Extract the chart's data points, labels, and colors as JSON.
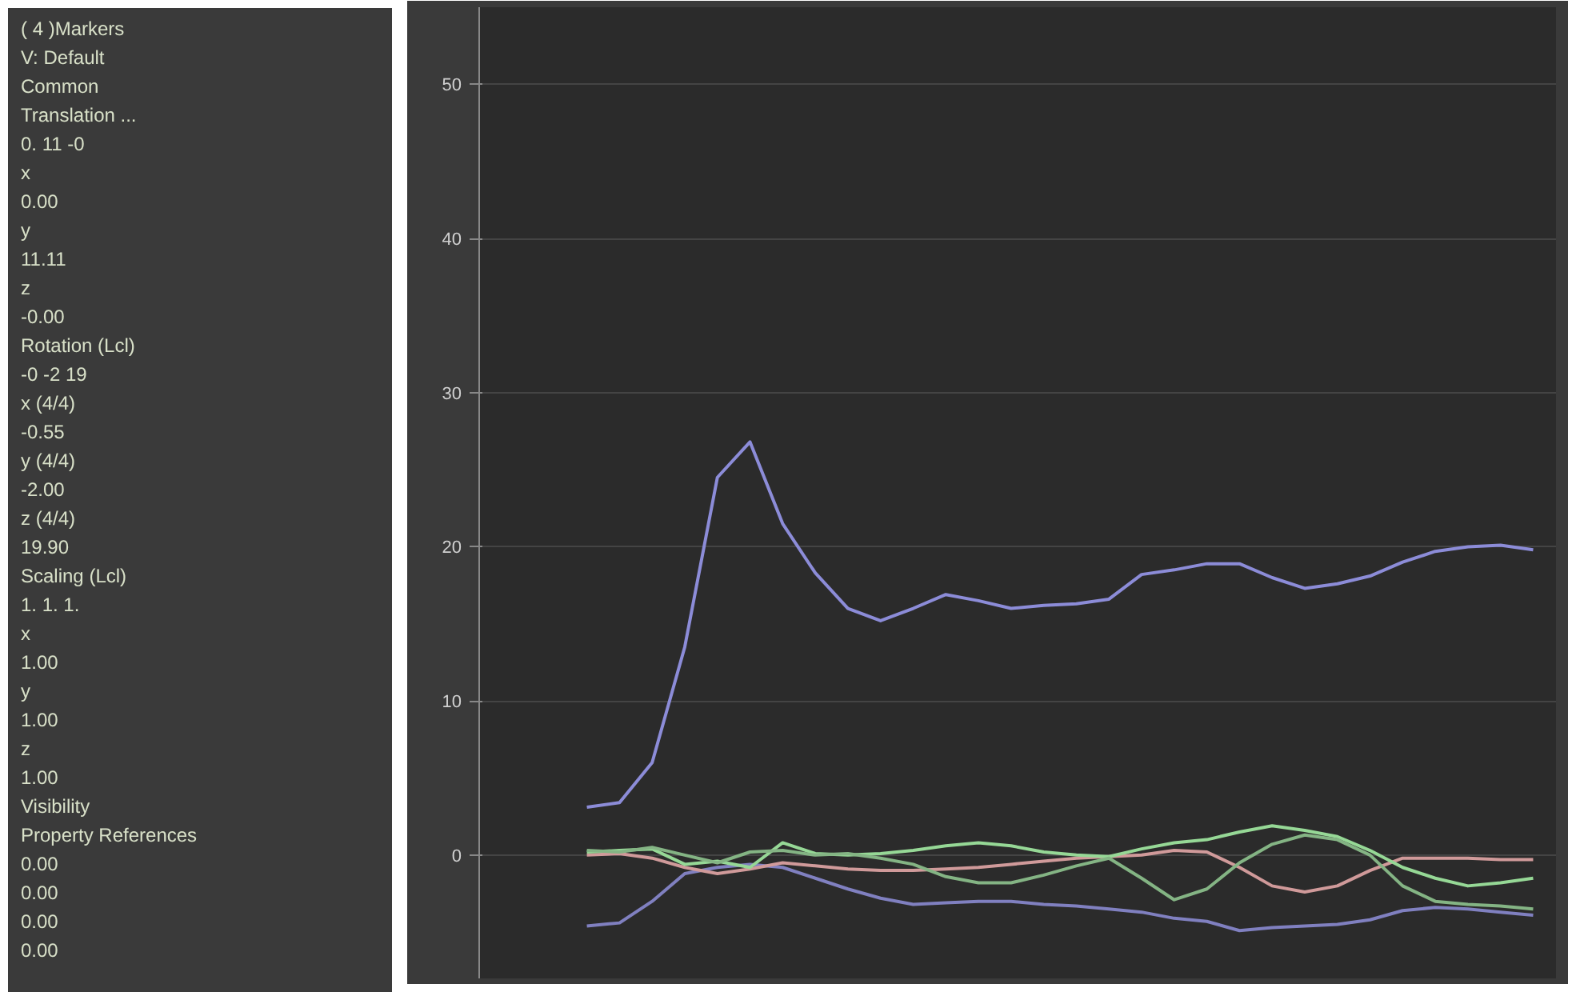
{
  "chart_data": {
    "type": "line",
    "annotations": [
      "( 4 )Markers",
      "V: Default",
      "Common",
      "Translation ...",
      "0. 11 -0",
      "x",
      "0.00",
      "y",
      "11.11",
      "z",
      "-0.00",
      "Rotation (Lcl)",
      "-0 -2 19",
      "x (4/4)",
      "-0.55",
      "y (4/4)",
      "-2.00",
      "z (4/4)",
      "19.90",
      "Scaling (Lcl)",
      "1. 1. 1.",
      "x",
      "1.00",
      "y",
      "1.00",
      "z",
      "1.00",
      "Visibility",
      "Property References",
      "0.00",
      "0.00",
      "0.00",
      "0.00"
    ],
    "categories": [
      null,
      null,
      null,
      null,
      null,
      null,
      null,
      null,
      null,
      null,
      null,
      null,
      null,
      null,
      null,
      null,
      null,
      null,
      null,
      null,
      null,
      null,
      null,
      null,
      null,
      null,
      null,
      null,
      null,
      null
    ],
    "ylim": [
      -8,
      55
    ],
    "yticks": [
      0,
      10,
      20,
      30,
      40,
      50
    ],
    "grid": "y",
    "series": [
      {
        "color": "#8c8cd8",
        "values": [
          3.1,
          3.4,
          6.0,
          13.5,
          24.5,
          26.8,
          21.5,
          18.3,
          16.0,
          15.2,
          16.0,
          16.9,
          16.5,
          16.0,
          16.2,
          16.3,
          16.6,
          18.2,
          18.5,
          18.9,
          18.9,
          18.0,
          17.3,
          17.6,
          18.1,
          19.0,
          19.7,
          20.0,
          20.1,
          19.8
        ]
      },
      {
        "color": "#8080c0",
        "values": [
          -4.6,
          -4.4,
          -3.0,
          -1.2,
          -0.8,
          -0.6,
          -0.8,
          -1.5,
          -2.2,
          -2.8,
          -3.2,
          -3.1,
          -3.0,
          -3.0,
          -3.2,
          -3.3,
          -3.5,
          -3.7,
          -4.1,
          -4.3,
          -4.9,
          -4.7,
          -4.6,
          -4.5,
          -4.2,
          -3.6,
          -3.4,
          -3.5,
          -3.7,
          -3.9
        ]
      },
      {
        "color": "#d09a9a",
        "values": [
          0.0,
          0.1,
          -0.2,
          -0.8,
          -1.2,
          -0.9,
          -0.5,
          -0.7,
          -0.9,
          -1.0,
          -1.0,
          -0.9,
          -0.8,
          -0.6,
          -0.4,
          -0.2,
          -0.1,
          0.0,
          0.3,
          0.2,
          -0.8,
          -2.0,
          -2.4,
          -2.0,
          -1.0,
          -0.2,
          -0.2,
          -0.2,
          -0.3,
          -0.3
        ]
      },
      {
        "color": "#96d896",
        "values": [
          0.2,
          0.3,
          0.4,
          -0.6,
          -0.4,
          -0.8,
          0.8,
          0.1,
          0.0,
          0.1,
          0.3,
          0.6,
          0.8,
          0.6,
          0.2,
          0.0,
          -0.1,
          0.4,
          0.8,
          1.0,
          1.5,
          1.9,
          1.6,
          1.2,
          0.3,
          -0.8,
          -1.5,
          -2.0,
          -1.8,
          -1.5
        ]
      },
      {
        "color": "#84b484",
        "values": [
          0.3,
          0.2,
          0.5,
          0.0,
          -0.5,
          0.2,
          0.3,
          0.0,
          0.1,
          -0.2,
          -0.6,
          -1.4,
          -1.8,
          -1.8,
          -1.3,
          -0.7,
          -0.2,
          -1.5,
          -2.9,
          -2.2,
          -0.5,
          0.7,
          1.3,
          1.0,
          0.0,
          -2.0,
          -3.0,
          -3.2,
          -3.3,
          -3.5
        ]
      }
    ]
  }
}
